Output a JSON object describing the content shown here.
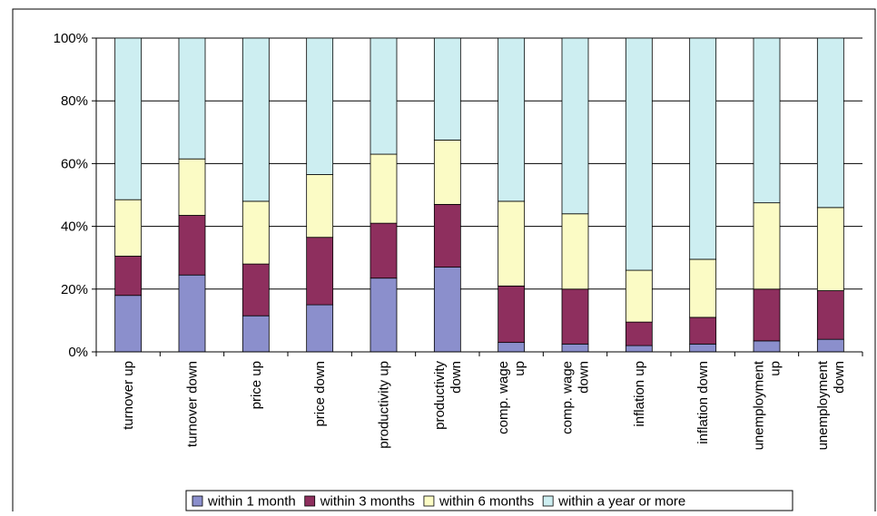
{
  "chart_data": {
    "type": "bar",
    "stacked": true,
    "percent": true,
    "categories": [
      [
        "turnover up"
      ],
      [
        "turnover down"
      ],
      [
        "price up"
      ],
      [
        "price down"
      ],
      [
        "productivity up"
      ],
      [
        "productivity",
        "down"
      ],
      [
        "comp. wage",
        "up"
      ],
      [
        "comp. wage",
        "down"
      ],
      [
        "inflation up"
      ],
      [
        "inflation down"
      ],
      [
        "unemployment",
        "up"
      ],
      [
        "unemployment",
        "down"
      ]
    ],
    "series": [
      {
        "name": "within 1 month",
        "color": "#8b8fcc",
        "values": [
          18,
          24.5,
          11.5,
          15,
          23.5,
          27,
          3,
          2.5,
          2,
          2.5,
          3.5,
          4
        ]
      },
      {
        "name": "within 3 months",
        "color": "#8e2f5e",
        "values": [
          12.5,
          19,
          16.5,
          21.5,
          17.5,
          20,
          18,
          17.5,
          7.5,
          8.5,
          16.5,
          15.5
        ]
      },
      {
        "name": "within 6 months",
        "color": "#fbfbc5",
        "values": [
          18,
          18,
          20,
          20,
          22,
          20.5,
          27,
          24,
          16.5,
          18.5,
          27.5,
          26.5
        ]
      },
      {
        "name": "within a year or more",
        "color": "#cdeef1",
        "values": [
          51.5,
          38.5,
          52,
          43.5,
          37,
          32.5,
          52,
          56,
          74,
          70.5,
          52.5,
          54
        ]
      }
    ],
    "yticks": [
      "0%",
      "20%",
      "40%",
      "60%",
      "80%",
      "100%"
    ],
    "ylim": [
      0,
      100
    ],
    "title": "",
    "xlabel": "",
    "ylabel": "",
    "grid": true,
    "legend_position": "bottom"
  }
}
